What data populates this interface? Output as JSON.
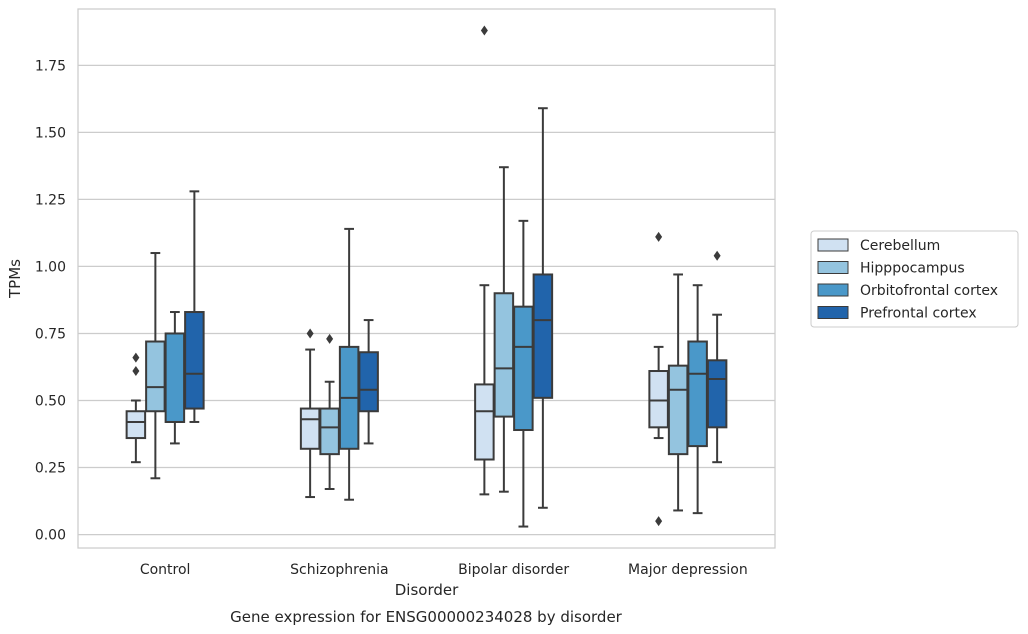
{
  "chart_data": {
    "type": "box",
    "title": "",
    "caption": "Gene expression for ENSG00000234028 by disorder",
    "xlabel": "Disorder",
    "ylabel": "TPMs",
    "ylim": [
      -0.05,
      1.96
    ],
    "yticks": [
      "0.00",
      "0.25",
      "0.50",
      "0.75",
      "1.00",
      "1.25",
      "1.50",
      "1.75"
    ],
    "grid": true,
    "legend_position": "right",
    "categories": [
      "Control",
      "Schizophrenia",
      "Bipolar disorder",
      "Major depression"
    ],
    "series": [
      {
        "name": "Cerebellum",
        "color": "#d0e1f2",
        "boxes": [
          {
            "whislo": 0.27,
            "q1": 0.36,
            "med": 0.42,
            "q3": 0.46,
            "whishi": 0.5,
            "fliers": [
              0.61,
              0.66
            ]
          },
          {
            "whislo": 0.14,
            "q1": 0.32,
            "med": 0.43,
            "q3": 0.47,
            "whishi": 0.69,
            "fliers": [
              0.75
            ]
          },
          {
            "whislo": 0.15,
            "q1": 0.28,
            "med": 0.46,
            "q3": 0.56,
            "whishi": 0.93,
            "fliers": [
              1.88
            ]
          },
          {
            "whislo": 0.36,
            "q1": 0.4,
            "med": 0.5,
            "q3": 0.61,
            "whishi": 0.7,
            "fliers": [
              0.05,
              1.11
            ]
          }
        ]
      },
      {
        "name": "Hipppocampus",
        "color": "#94c4df",
        "boxes": [
          {
            "whislo": 0.21,
            "q1": 0.46,
            "med": 0.55,
            "q3": 0.72,
            "whishi": 1.05,
            "fliers": []
          },
          {
            "whislo": 0.17,
            "q1": 0.3,
            "med": 0.4,
            "q3": 0.47,
            "whishi": 0.57,
            "fliers": [
              0.73
            ]
          },
          {
            "whislo": 0.16,
            "q1": 0.44,
            "med": 0.62,
            "q3": 0.9,
            "whishi": 1.37,
            "fliers": []
          },
          {
            "whislo": 0.09,
            "q1": 0.3,
            "med": 0.54,
            "q3": 0.63,
            "whishi": 0.97,
            "fliers": []
          }
        ]
      },
      {
        "name": "Orbitofrontal cortex",
        "color": "#4a98c9",
        "boxes": [
          {
            "whislo": 0.34,
            "q1": 0.42,
            "med": 0.42,
            "q3": 0.75,
            "whishi": 0.83,
            "fliers": []
          },
          {
            "whislo": 0.13,
            "q1": 0.32,
            "med": 0.51,
            "q3": 0.7,
            "whishi": 1.14,
            "fliers": []
          },
          {
            "whislo": 0.03,
            "q1": 0.39,
            "med": 0.7,
            "q3": 0.85,
            "whishi": 1.17,
            "fliers": []
          },
          {
            "whislo": 0.08,
            "q1": 0.33,
            "med": 0.6,
            "q3": 0.72,
            "whishi": 0.93,
            "fliers": []
          }
        ]
      },
      {
        "name": "Prefrontal cortex",
        "color": "#2164ab",
        "boxes": [
          {
            "whislo": 0.42,
            "q1": 0.47,
            "med": 0.6,
            "q3": 0.83,
            "whishi": 1.28,
            "fliers": []
          },
          {
            "whislo": 0.34,
            "q1": 0.46,
            "med": 0.54,
            "q3": 0.68,
            "whishi": 0.8,
            "fliers": []
          },
          {
            "whislo": 0.1,
            "q1": 0.51,
            "med": 0.8,
            "q3": 0.97,
            "whishi": 1.59,
            "fliers": []
          },
          {
            "whislo": 0.27,
            "q1": 0.4,
            "med": 0.58,
            "q3": 0.65,
            "whishi": 0.82,
            "fliers": [
              1.04
            ]
          }
        ]
      }
    ]
  }
}
